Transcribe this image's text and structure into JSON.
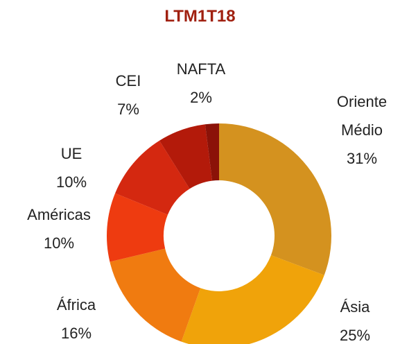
{
  "chart_data": {
    "type": "donut",
    "title": "LTM1T18",
    "categories": [
      "Oriente Médio",
      "Ásia",
      "África",
      "Américas",
      "UE",
      "CEI",
      "NAFTA"
    ],
    "values": [
      31,
      25,
      16,
      10,
      10,
      7,
      2
    ],
    "value_labels": [
      "31%",
      "25%",
      "16%",
      "10%",
      "10%",
      "7%",
      "2%"
    ],
    "colors": [
      "#D4921F",
      "#F0A30A",
      "#F07B10",
      "#EE3B10",
      "#D42810",
      "#B31A0A",
      "#8B1208"
    ]
  }
}
